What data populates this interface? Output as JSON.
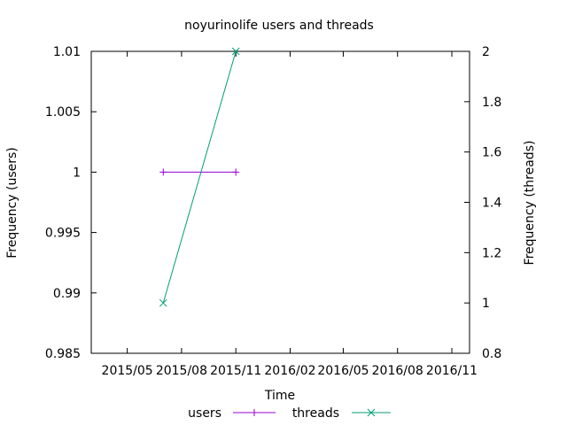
{
  "chart_data": {
    "type": "line",
    "title": "noyurinolife users and threads",
    "xlabel": "Time",
    "ylabel_left": "Frequency (users)",
    "ylabel_right": "Frequency (threads)",
    "x_tick_labels": [
      "2015/05",
      "2015/08",
      "2015/11",
      "2016/02",
      "2016/05",
      "2016/08",
      "2016/11"
    ],
    "y_left_ticks": [
      "0.985",
      "0.99",
      "0.995",
      "1",
      "1.005",
      "1.01"
    ],
    "y_right_ticks": [
      "0.8",
      "1",
      "1.2",
      "1.4",
      "1.6",
      "1.8",
      "2"
    ],
    "ylim_left": [
      0.985,
      1.01
    ],
    "ylim_right": [
      0.8,
      2
    ],
    "x_range": [
      "2015-03-01",
      "2016-12-01"
    ],
    "legend_position": "bottom",
    "grid": false,
    "series": [
      {
        "name": "users",
        "axis": "left",
        "color": "#9400d3",
        "marker": "plus",
        "x": [
          "2015-07-01",
          "2015-11-01"
        ],
        "y": [
          1,
          1
        ]
      },
      {
        "name": "threads",
        "axis": "right",
        "color": "#009e73",
        "marker": "cross",
        "x": [
          "2015-07-01",
          "2015-11-01"
        ],
        "y": [
          1,
          2
        ]
      }
    ]
  }
}
